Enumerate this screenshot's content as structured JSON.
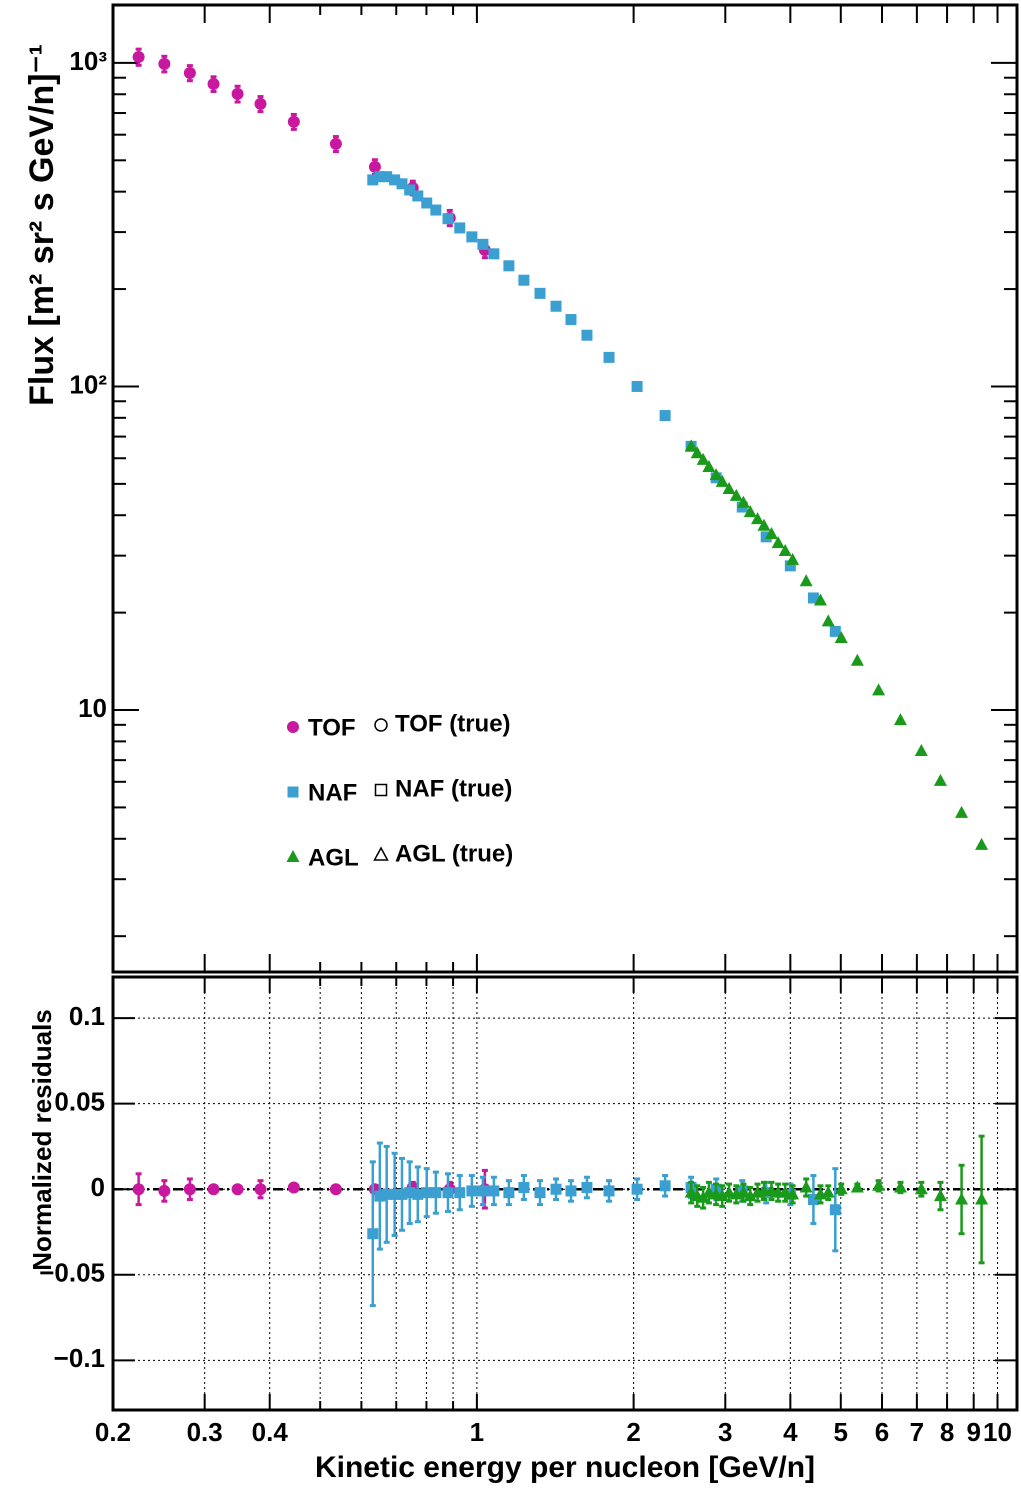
{
  "chart_data": [
    {
      "type": "scatter",
      "log_x": true,
      "log_y": true,
      "y_label": "Flux [m² sr² s GeV/n]⁻¹",
      "xlim": [
        0.2,
        10.9
      ],
      "ylim": [
        1.55,
        1510
      ],
      "yticks": [
        {
          "value": 1000,
          "label": "10³"
        },
        {
          "value": 100,
          "label": "10²"
        },
        10
      ],
      "yminor": [
        2,
        3,
        4,
        5,
        6,
        7,
        8,
        9,
        20,
        30,
        40,
        50,
        60,
        70,
        80,
        90,
        200,
        300,
        400,
        500,
        600,
        700,
        800,
        900
      ],
      "series": [
        {
          "name": "TOF",
          "true_name": "TOF (true)",
          "marker": "circle",
          "color": "#c8189e",
          "x": [
            0.224,
            0.251,
            0.281,
            0.312,
            0.347,
            0.384,
            0.445,
            0.536,
            0.637,
            0.753,
            0.887,
            1.036
          ],
          "values": [
            1043,
            993,
            931,
            861,
            802,
            747,
            658,
            562,
            477,
            411,
            332,
            264
          ],
          "errors": [
            60,
            55,
            50,
            45,
            45,
            40,
            35,
            30,
            25,
            20,
            18,
            14
          ]
        },
        {
          "name": "NAF",
          "true_name": "NAF (true)",
          "marker": "square",
          "color": "#3b9fd1",
          "x": [
            0.631,
            0.651,
            0.671,
            0.695,
            0.718,
            0.743,
            0.77,
            0.801,
            0.834,
            0.88,
            0.927,
            0.978,
            1.027,
            1.078,
            1.152,
            1.231,
            1.322,
            1.419,
            1.516,
            1.627,
            1.794,
            2.031,
            2.299,
            2.579,
            2.882,
            3.234,
            3.595,
            4.0,
            4.43,
            4.88
          ],
          "values": [
            435,
            445,
            445,
            435,
            423,
            405,
            388,
            369,
            351,
            330,
            309,
            290,
            275,
            257,
            236,
            213,
            194,
            177,
            161,
            144,
            123,
            100,
            81.3,
            65.3,
            52.2,
            42.4,
            34.3,
            27.9,
            22.2,
            17.5
          ]
        },
        {
          "name": "AGL",
          "true_name": "AGL (true)",
          "marker": "triangle",
          "color": "#1a9a1a",
          "x": [
            2.58,
            2.65,
            2.72,
            2.79,
            2.88,
            2.96,
            3.05,
            3.15,
            3.25,
            3.35,
            3.46,
            3.56,
            3.68,
            3.79,
            3.91,
            4.04,
            4.29,
            4.57,
            4.73,
            5.01,
            5.38,
            5.91,
            6.51,
            7.14,
            7.77,
            8.53,
            9.32
          ],
          "values": [
            65.3,
            62.2,
            59.3,
            56.4,
            53.2,
            50.7,
            48.2,
            45.9,
            43.7,
            40.9,
            38.9,
            37.1,
            35.0,
            32.8,
            31.0,
            29.1,
            25.0,
            21.8,
            18.8,
            16.7,
            14.2,
            11.5,
            9.31,
            7.47,
            6.04,
            4.81,
            3.83
          ]
        }
      ]
    },
    {
      "type": "residual",
      "log_x": true,
      "grid": true,
      "reference": 0,
      "x_label": "Kinetic energy per nucleon [GeV/n]",
      "y_label": "Normalized residuals",
      "xlim": [
        0.2,
        10.9
      ],
      "ylim": [
        -0.129,
        0.124
      ],
      "xticks": [
        0.2,
        0.3,
        0.4,
        1,
        2,
        3,
        4,
        5,
        6,
        7,
        8,
        9,
        10
      ],
      "xminor": [
        0.5,
        0.6,
        0.7,
        0.8,
        0.9
      ],
      "yticks": [
        0.1,
        0.05,
        0,
        {
          "value": -0.05,
          "label": "−0.05"
        },
        {
          "value": -0.1,
          "label": "−0.1"
        }
      ],
      "series": [
        {
          "values": [
            0,
            -0.001,
            0,
            0,
            0,
            0,
            0.001,
            0,
            0,
            0.001,
            0,
            0
          ],
          "errors": [
            0.009,
            0.006,
            0.006,
            0.002,
            0.002,
            0.005,
            0.002,
            0.002,
            0.002,
            0.003,
            0.004,
            0.011
          ]
        },
        {
          "values": [
            -0.026,
            -0.004,
            -0.003,
            -0.003,
            -0.003,
            -0.002,
            -0.003,
            -0.002,
            -0.002,
            -0.002,
            -0.002,
            -0.001,
            -0.001,
            -0.001,
            -0.002,
            0.001,
            -0.002,
            0,
            -0.001,
            0.001,
            -0.001,
            0,
            0.002,
            0.001,
            0,
            -0.001,
            -0.002,
            -0.003,
            -0.006,
            -0.012
          ],
          "errors": [
            0.042,
            0.031,
            0.028,
            0.024,
            0.021,
            0.018,
            0.016,
            0.014,
            0.012,
            0.011,
            0.01,
            0.009,
            0.008,
            0.008,
            0.007,
            0.007,
            0.007,
            0.006,
            0.006,
            0.006,
            0.006,
            0.006,
            0.006,
            0.006,
            0.006,
            0.006,
            0.006,
            0.006,
            0.014,
            0.024
          ]
        },
        {
          "values": [
            -0.002,
            -0.004,
            -0.005,
            -0.002,
            -0.003,
            -0.004,
            -0.002,
            -0.003,
            -0.002,
            -0.004,
            -0.002,
            -0.001,
            -0.001,
            -0.002,
            -0.002,
            -0.003,
            0.001,
            -0.003,
            -0.002,
            0,
            0.001,
            0.002,
            0.001,
            0,
            -0.004,
            -0.006,
            -0.006
          ],
          "errors": [
            0.006,
            0.006,
            0.006,
            0.006,
            0.006,
            0.006,
            0.005,
            0.005,
            0.005,
            0.005,
            0.005,
            0.005,
            0.005,
            0.005,
            0.005,
            0.005,
            0.005,
            0.005,
            0.004,
            0.003,
            0.002,
            0.003,
            0.003,
            0.004,
            0.008,
            0.02,
            0.037
          ]
        }
      ]
    }
  ]
}
